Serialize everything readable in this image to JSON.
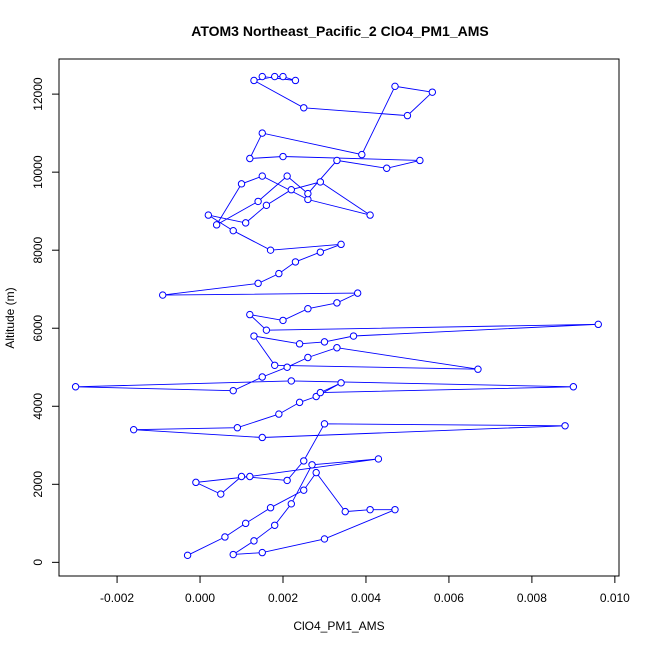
{
  "chart_data": {
    "type": "line",
    "title": "ATOM3 Northeast_Pacific_2 ClO4_PM1_AMS",
    "xlabel": "ClO4_PM1_AMS",
    "ylabel": "Altitude (m)",
    "xlim": [
      -0.0034,
      0.0101
    ],
    "ylim": [
      -350,
      12900
    ],
    "x_ticks": [
      -0.002,
      0.0,
      0.002,
      0.004,
      0.006,
      0.008,
      0.01
    ],
    "x_tick_labels": [
      "-0.002",
      "0.000",
      "0.002",
      "0.004",
      "0.006",
      "0.008",
      "0.010"
    ],
    "y_ticks": [
      0,
      2000,
      4000,
      6000,
      8000,
      10000,
      12000
    ],
    "y_tick_labels": [
      "0",
      "2000",
      "4000",
      "6000",
      "8000",
      "10000",
      "12000"
    ],
    "grid": false,
    "legend": "none",
    "marker": "open-circle",
    "series": [
      {
        "color": "#0000ff",
        "x": [
          -0.0003,
          0.0006,
          0.0011,
          0.0017,
          0.0025,
          0.0028,
          0.0035,
          0.0041,
          0.0047,
          0.003,
          0.0015,
          0.0008,
          0.0013,
          0.0018,
          0.0022,
          0.0027,
          0.0043,
          0.0012,
          -0.0001,
          0.0005,
          0.001,
          0.0021,
          0.0025,
          0.003,
          0.0088,
          0.0015,
          -0.0016,
          0.0009,
          0.0019,
          0.0024,
          0.0028,
          0.0034,
          0.0029,
          0.009,
          0.0022,
          -0.003,
          0.0008,
          0.0015,
          0.0021,
          0.0026,
          0.0033,
          0.0067,
          0.0018,
          0.0013,
          0.0024,
          0.003,
          0.0037,
          0.0096,
          0.0016,
          0.0012,
          0.002,
          0.0026,
          0.0033,
          0.0038,
          -0.0009,
          0.0014,
          0.0019,
          0.0023,
          0.0029,
          0.0034,
          0.0017,
          0.0008,
          0.0002,
          0.0011,
          0.0016,
          0.0022,
          0.0029,
          0.0041,
          0.0026,
          0.0015,
          0.001,
          0.0004,
          0.0014,
          0.0021,
          0.0026,
          0.0033,
          0.0045,
          0.0053,
          0.002,
          0.0012,
          0.0015,
          0.0039,
          0.0047,
          0.0056,
          0.005,
          0.0025,
          0.0013,
          0.0018,
          0.002,
          0.0023,
          0.0015
        ],
        "y": [
          180,
          650,
          1000,
          1400,
          1850,
          2300,
          1300,
          1350,
          1350,
          600,
          250,
          200,
          550,
          950,
          1500,
          2500,
          2650,
          2200,
          2050,
          1750,
          2200,
          2100,
          2600,
          3550,
          3500,
          3200,
          3400,
          3450,
          3800,
          4100,
          4250,
          4600,
          4350,
          4500,
          4650,
          4500,
          4400,
          4750,
          5000,
          5250,
          5500,
          4950,
          5050,
          5800,
          5600,
          5650,
          5800,
          6100,
          5950,
          6350,
          6200,
          6500,
          6650,
          6900,
          6850,
          7150,
          7400,
          7700,
          7950,
          8150,
          8000,
          8500,
          8900,
          8700,
          9150,
          9550,
          9750,
          8900,
          9300,
          9900,
          9700,
          8650,
          9250,
          9900,
          9450,
          10300,
          10100,
          10300,
          10400,
          10350,
          11000,
          10450,
          12200,
          12050,
          11450,
          11650,
          12350,
          12450,
          12450,
          12350,
          12450
        ]
      }
    ]
  }
}
